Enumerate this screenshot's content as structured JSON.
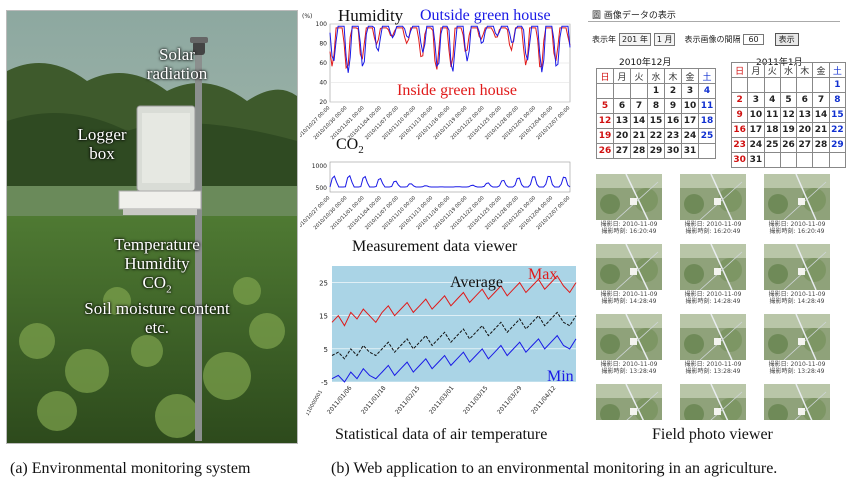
{
  "photo": {
    "labels": {
      "solar": "Solar\nradiation",
      "logger": "Logger\nbox",
      "sensors": [
        "Temperature",
        "Humidity",
        "CO",
        "Soil moisture content",
        "etc."
      ],
      "co_sub": "2"
    }
  },
  "captions": {
    "a": "(a) Environmental monitoring system",
    "b": "(b) Web application to an environmental monitoring in an agriculture."
  },
  "measurement_viewer": {
    "caption": "Measurement data viewer",
    "humidity_label": "Humidity",
    "outside_label": "Outside green house",
    "inside_label": "Inside green house",
    "co2_label": "CO",
    "co2_sub": "2",
    "humidity_unit": "(%)",
    "humidity_yticks": [
      "100",
      "80",
      "60",
      "40",
      "20"
    ],
    "co2_yticks": [
      "1000",
      "500"
    ],
    "dates": [
      "2010/10/27 00:00",
      "2010/10/30 00:00",
      "2010/11/01 00:00",
      "2010/11/04 00:00",
      "2010/11/07 00:00",
      "2010/11/10 00:00",
      "2010/11/13 00:00",
      "2010/11/16 00:00",
      "2010/11/19 00:00",
      "2010/11/22 00:00",
      "2010/11/25 00:00",
      "2010/11/28 00:00",
      "2010/12/01 00:00",
      "2010/12/04 00:00",
      "2010/12/07 00:00"
    ],
    "colors": {
      "outside": "#1a1ae6",
      "inside": "#e01a1a"
    }
  },
  "chart_data": {
    "type": "line",
    "title": "Statistical data of air temperature",
    "series": [
      {
        "name": "Max",
        "values": [
          13,
          15,
          12,
          16,
          14,
          17,
          15,
          13,
          16,
          18,
          15,
          17,
          19,
          16,
          18,
          20,
          17,
          19,
          21,
          18,
          20,
          22,
          19,
          21,
          23,
          20,
          22,
          24,
          21,
          23,
          25,
          22,
          24,
          26,
          23,
          25,
          27,
          24,
          22,
          25
        ]
      },
      {
        "name": "Average",
        "values": [
          3,
          4,
          2,
          5,
          3,
          6,
          4,
          3,
          5,
          7,
          4,
          6,
          8,
          5,
          7,
          9,
          6,
          8,
          10,
          7,
          9,
          11,
          8,
          10,
          12,
          9,
          11,
          13,
          10,
          12,
          14,
          11,
          13,
          15,
          12,
          14,
          16,
          13,
          12,
          15
        ]
      },
      {
        "name": "Min",
        "values": [
          -4,
          -3,
          -5,
          -2,
          -4,
          -1,
          -3,
          -4,
          -2,
          0,
          -3,
          -1,
          1,
          -2,
          0,
          2,
          -1,
          1,
          3,
          0,
          2,
          4,
          1,
          3,
          5,
          2,
          4,
          6,
          3,
          5,
          7,
          4,
          6,
          8,
          5,
          7,
          9,
          6,
          5,
          8
        ]
      }
    ],
    "ylim": [
      -5,
      30
    ],
    "yticks": [
      "25",
      "15",
      "5",
      "-5"
    ],
    "ytick_top": "25",
    "xticks": [
      "2011/01/06",
      "2011/01/18",
      "2011/02/15",
      "2011/03/01",
      "2011/03/15",
      "2011/03/29",
      "2011/04/12"
    ],
    "xtick_first": "110000001",
    "colors": {
      "Max": "#e01a1a",
      "Average": "#111111",
      "Min": "#1a1ae6"
    }
  },
  "photo_viewer": {
    "caption": "Field photo viewer",
    "title": "圖 画像データの表示",
    "year_label": "表示年",
    "year_value": "201 年",
    "month_value": "1 月",
    "interval_label": "表示画像の間隔",
    "interval_value": "60",
    "button_label": "表示",
    "cal1": {
      "title": "2010年12月",
      "headers": [
        "日",
        "月",
        "火",
        "水",
        "木",
        "金",
        "土"
      ],
      "rows": [
        [
          "",
          "",
          "",
          "1",
          "2",
          "3",
          "4"
        ],
        [
          "5",
          "6",
          "7",
          "8",
          "9",
          "10",
          "11"
        ],
        [
          "12",
          "13",
          "14",
          "15",
          "16",
          "17",
          "18"
        ],
        [
          "19",
          "20",
          "21",
          "22",
          "23",
          "24",
          "25"
        ],
        [
          "26",
          "27",
          "28",
          "29",
          "30",
          "31",
          ""
        ]
      ]
    },
    "cal2": {
      "title": "2011年1月",
      "headers": [
        "日",
        "月",
        "火",
        "水",
        "木",
        "金",
        "土"
      ],
      "rows": [
        [
          "",
          "",
          "",
          "",
          "",
          "",
          "1"
        ],
        [
          "2",
          "3",
          "4",
          "5",
          "6",
          "7",
          "8"
        ],
        [
          "9",
          "10",
          "11",
          "12",
          "13",
          "14",
          "15"
        ],
        [
          "16",
          "17",
          "18",
          "19",
          "20",
          "21",
          "22"
        ],
        [
          "23",
          "24",
          "25",
          "26",
          "27",
          "28",
          "29"
        ],
        [
          "30",
          "31",
          "",
          "",
          "",
          "",
          ""
        ]
      ]
    },
    "thumb_captions": [
      "撮影日: 2010-11-09\n撮影時刻: 16:20:49",
      "撮影日: 2010-11-09\n撮影時刻: 16:20:49",
      "撮影日: 2010-11-09\n撮影時刻: 16:20:49",
      "撮影日: 2010-11-09\n撮影時刻: 14:28:49",
      "撮影日: 2010-11-09\n撮影時刻: 14:28:49",
      "撮影日: 2010-11-09\n撮影時刻: 14:28:49",
      "撮影日: 2010-11-09\n撮影時刻: 13:28:49",
      "撮影日: 2010-11-09\n撮影時刻: 13:28:49",
      "撮影日: 2010-11-09\n撮影時刻: 13:28:49",
      "",
      "",
      ""
    ]
  }
}
